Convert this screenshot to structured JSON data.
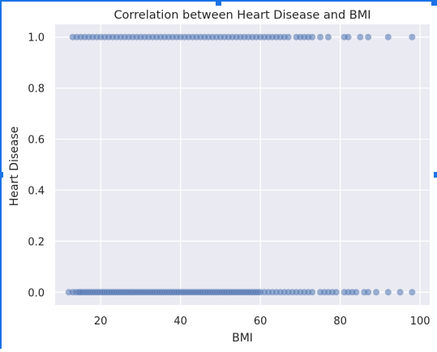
{
  "chart_data": {
    "type": "scatter",
    "title": "Correlation between Heart Disease and BMI",
    "xlabel": "BMI",
    "ylabel": "Heart Disease",
    "xlim": [
      8.6,
      102.4
    ],
    "ylim": [
      -0.05,
      1.05
    ],
    "xticks": [
      20,
      40,
      60,
      80,
      100
    ],
    "yticks": [
      0.0,
      0.2,
      0.4,
      0.6,
      0.8,
      1.0
    ],
    "xtick_labels": [
      "20",
      "40",
      "60",
      "80",
      "100"
    ],
    "ytick_labels": [
      "0.0",
      "0.2",
      "0.4",
      "0.6",
      "0.8",
      "1.0"
    ],
    "grid": true,
    "series": [
      {
        "color": "#4c72b0",
        "points_y0": [
          12.0,
          13.0,
          13.8,
          14.5,
          15.0,
          15.6,
          16.2,
          16.8,
          17.4,
          18.0,
          18.6,
          19.2,
          19.8,
          20.4,
          21.0,
          21.6,
          22.2,
          22.8,
          23.4,
          24.0,
          24.6,
          25.2,
          25.8,
          26.4,
          27.0,
          27.6,
          28.2,
          28.8,
          29.4,
          30.0,
          30.6,
          31.2,
          31.8,
          32.4,
          33.0,
          33.6,
          34.2,
          34.8,
          35.4,
          36.0,
          36.6,
          37.2,
          37.8,
          38.4,
          39.0,
          39.6,
          40.2,
          40.8,
          41.4,
          42.0,
          42.6,
          43.2,
          43.8,
          44.4,
          45.0,
          45.6,
          46.2,
          46.8,
          47.4,
          48.0,
          48.6,
          49.2,
          49.8,
          50.4,
          51.0,
          51.6,
          52.2,
          52.8,
          53.4,
          54.0,
          54.6,
          55.2,
          55.8,
          56.4,
          57.0,
          57.6,
          58.2,
          58.8,
          59.4,
          60.0,
          61.0,
          62.0,
          63.0,
          64.0,
          65.0,
          66.0,
          67.0,
          68.0,
          69.0,
          70.0,
          71.0,
          72.0,
          73.0,
          75.0,
          76.0,
          77.0,
          78.0,
          79.0,
          81.0,
          82.0,
          83.0,
          84.0,
          86.0,
          87.0,
          89.0,
          92.0,
          95.0,
          98.0
        ],
        "points_y1": [
          13.0,
          14.0,
          15.0,
          16.0,
          17.0,
          18.0,
          19.0,
          20.0,
          21.0,
          22.0,
          23.0,
          24.0,
          25.0,
          26.0,
          27.0,
          28.0,
          29.0,
          30.0,
          31.0,
          32.0,
          33.0,
          34.0,
          35.0,
          36.0,
          37.0,
          38.0,
          39.0,
          40.0,
          41.0,
          42.0,
          43.0,
          44.0,
          45.0,
          46.0,
          47.0,
          48.0,
          49.0,
          50.0,
          51.0,
          52.0,
          53.0,
          54.0,
          55.0,
          56.0,
          57.0,
          58.0,
          59.0,
          60.0,
          61.0,
          62.0,
          63.0,
          64.0,
          65.0,
          66.0,
          67.0,
          69.0,
          70.0,
          71.0,
          72.0,
          73.0,
          75.0,
          77.0,
          81.0,
          82.0,
          85.0,
          87.0,
          92.0,
          98.0
        ]
      }
    ]
  }
}
